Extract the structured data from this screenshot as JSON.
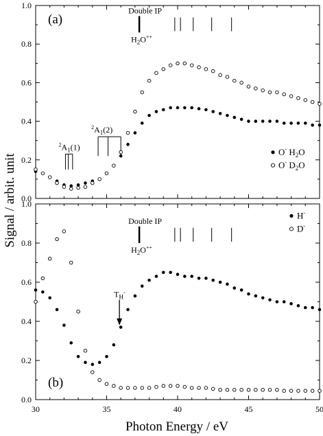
{
  "chart_data": {
    "type": "scatter",
    "xlabel": "Photon Energy / eV",
    "ylabel": "Signal / arbit. unit",
    "xlim": [
      30,
      50
    ],
    "ylim": [
      0,
      1.0
    ],
    "x_ticks": [
      30,
      35,
      40,
      45,
      50
    ],
    "y_ticks": [
      0.0,
      0.2,
      0.4,
      0.6,
      0.8,
      1.0
    ],
    "y_tick_labels": [
      "0.0",
      "0.2",
      "0.4",
      "0.6",
      "0.8",
      "1.0"
    ],
    "panels": [
      {
        "label": "(a)",
        "annotations": {
          "double_ip": "Double IP",
          "h2o_label": "H",
          "h2o_sub": "2",
          "h2o_tail": "O",
          "h2o_sup": "++",
          "double_ip_x": 37.3,
          "double_ip_lines": [
            39.8,
            40.2,
            41.1,
            42.4,
            43.8
          ],
          "a1_1_sup": "2",
          "a1_1_main": "A",
          "a1_1_sub": "1",
          "a1_1_tail": "(1)",
          "a1_1_lines": [
            32.1,
            32.3,
            32.6
          ],
          "a1_2_sup": "2",
          "a1_2_main": "A",
          "a1_2_sub": "1",
          "a1_2_tail": "(2)",
          "a1_2_lines": [
            34.4,
            35.1,
            36.0
          ]
        },
        "legend": [
          {
            "marker": "filled",
            "ion": "O",
            "ion_sup": "-",
            "mol": "H",
            "mol_sub": "2",
            "mol_tail": "O"
          },
          {
            "marker": "open",
            "ion": "O",
            "ion_sup": "-",
            "mol": "D",
            "mol_sub": "2",
            "mol_tail": "O"
          }
        ],
        "series": [
          {
            "marker": "filled",
            "x": [
              30,
              30.5,
              31,
              31.5,
              32,
              32.5,
              33,
              33.5,
              34,
              34.5,
              35,
              35.5,
              36,
              36.5,
              37,
              37.5,
              38,
              38.5,
              39,
              39.5,
              40,
              40.5,
              41,
              41.5,
              42,
              42.5,
              43,
              43.5,
              44,
              44.5,
              45,
              45.5,
              46,
              46.5,
              47,
              47.5,
              48,
              48.5,
              49,
              49.5,
              50
            ],
            "y": [
              0.14,
              0.13,
              0.11,
              0.09,
              0.07,
              0.065,
              0.07,
              0.08,
              0.09,
              0.1,
              0.13,
              0.17,
              0.22,
              0.28,
              0.34,
              0.39,
              0.43,
              0.45,
              0.46,
              0.47,
              0.47,
              0.47,
              0.47,
              0.465,
              0.46,
              0.45,
              0.44,
              0.43,
              0.42,
              0.41,
              0.4,
              0.4,
              0.4,
              0.4,
              0.4,
              0.39,
              0.39,
              0.39,
              0.39,
              0.38,
              0.38
            ]
          },
          {
            "marker": "open",
            "x": [
              30,
              30.5,
              31,
              31.5,
              32,
              32.5,
              33,
              33.5,
              34,
              34.5,
              35,
              35.5,
              36,
              36.5,
              37,
              37.5,
              38,
              38.5,
              39,
              39.5,
              40,
              40.5,
              41,
              41.5,
              42,
              42.5,
              43,
              43.5,
              44,
              44.5,
              45,
              45.5,
              46,
              46.5,
              47,
              47.5,
              48,
              48.5,
              49,
              49.5,
              50
            ],
            "y": [
              0.15,
              0.13,
              0.11,
              0.08,
              0.06,
              0.05,
              0.055,
              0.06,
              0.08,
              0.1,
              0.13,
              0.17,
              0.24,
              0.34,
              0.45,
              0.55,
              0.61,
              0.65,
              0.67,
              0.69,
              0.7,
              0.7,
              0.69,
              0.68,
              0.67,
              0.66,
              0.64,
              0.63,
              0.61,
              0.6,
              0.58,
              0.57,
              0.56,
              0.55,
              0.55,
              0.54,
              0.53,
              0.52,
              0.51,
              0.5,
              0.49
            ]
          }
        ]
      },
      {
        "label": "(b)",
        "annotations": {
          "double_ip": "Double IP",
          "h2o_label": "H",
          "h2o_sub": "2",
          "h2o_tail": "O",
          "h2o_sup": "++",
          "double_ip_x": 37.3,
          "double_ip_lines": [
            39.8,
            40.2,
            41.1,
            42.4,
            43.8
          ],
          "threshold_main": "T",
          "threshold_sub": "H",
          "threshold_sup": "-",
          "threshold_arrow_x": 35.9,
          "threshold_arrow_y_from": 0.51,
          "threshold_arrow_y_to": 0.38
        },
        "legend": [
          {
            "marker": "filled",
            "ion": "H",
            "ion_sup": "-"
          },
          {
            "marker": "open",
            "ion": "D",
            "ion_sup": "-"
          }
        ],
        "series": [
          {
            "marker": "filled",
            "x": [
              30,
              30.5,
              31,
              31.5,
              32,
              32.5,
              33,
              33.5,
              34,
              34.5,
              35,
              35.5,
              36,
              36.5,
              37,
              37.5,
              38,
              38.5,
              39,
              39.5,
              40,
              40.5,
              41,
              41.5,
              42,
              42.5,
              43,
              43.5,
              44,
              44.5,
              45,
              45.5,
              46,
              46.5,
              47,
              47.5,
              48,
              48.5,
              49,
              49.5,
              50
            ],
            "y": [
              0.56,
              0.55,
              0.52,
              0.46,
              0.38,
              0.29,
              0.22,
              0.19,
              0.18,
              0.19,
              0.22,
              0.28,
              0.37,
              0.46,
              0.53,
              0.58,
              0.61,
              0.63,
              0.65,
              0.65,
              0.64,
              0.63,
              0.63,
              0.62,
              0.62,
              0.61,
              0.6,
              0.59,
              0.57,
              0.56,
              0.54,
              0.53,
              0.52,
              0.51,
              0.5,
              0.5,
              0.49,
              0.48,
              0.47,
              0.47,
              0.46
            ]
          },
          {
            "marker": "open",
            "x": [
              30,
              30.5,
              31,
              31.5,
              32,
              32.5,
              33,
              33.5,
              34,
              34.5,
              35,
              35.5,
              36,
              36.5,
              37,
              37.5,
              38,
              38.5,
              39,
              39.5,
              40,
              40.5,
              41,
              41.5,
              42,
              42.5,
              43,
              43.5,
              44,
              44.5,
              45,
              45.5,
              46,
              46.5,
              47,
              47.5,
              48,
              48.5,
              49,
              49.5,
              50
            ],
            "y": [
              0.5,
              0.62,
              0.72,
              0.82,
              0.86,
              0.7,
              0.45,
              0.25,
              0.14,
              0.1,
              0.08,
              0.07,
              0.06,
              0.06,
              0.06,
              0.06,
              0.06,
              0.065,
              0.07,
              0.07,
              0.07,
              0.065,
              0.06,
              0.06,
              0.06,
              0.055,
              0.05,
              0.05,
              0.05,
              0.05,
              0.05,
              0.05,
              0.05,
              0.05,
              0.05,
              0.045,
              0.045,
              0.045,
              0.045,
              0.045,
              0.045
            ]
          }
        ]
      }
    ]
  }
}
